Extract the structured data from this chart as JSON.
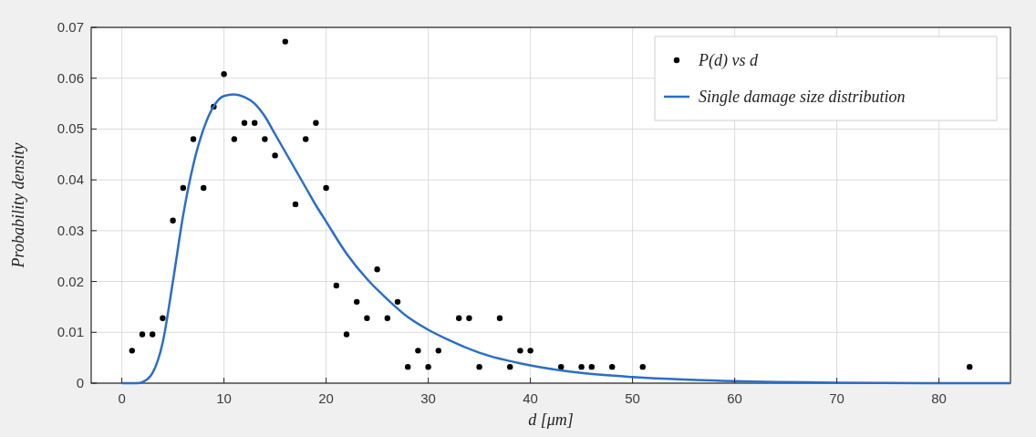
{
  "chart_data": {
    "type": "scatter",
    "xlabel": "d [μm]",
    "ylabel": "Probability density",
    "xlim": [
      -3,
      87
    ],
    "ylim": [
      0,
      0.07
    ],
    "xticks": [
      0,
      10,
      20,
      30,
      40,
      50,
      60,
      70,
      80
    ],
    "yticks": [
      0,
      0.01,
      0.02,
      0.03,
      0.04,
      0.05,
      0.06,
      0.07
    ],
    "grid": true,
    "legend": "top right",
    "series": [
      {
        "name": "P(d) vs d",
        "marker": "circle",
        "color": "#000000",
        "x": [
          1,
          2,
          3,
          4,
          5,
          6,
          7,
          8,
          9,
          10,
          11,
          12,
          13,
          14,
          15,
          16,
          17,
          18,
          19,
          20,
          21,
          22,
          23,
          24,
          25,
          26,
          27,
          28,
          29,
          30,
          31,
          33,
          34,
          35,
          37,
          38,
          39,
          40,
          43,
          45,
          46,
          48,
          51,
          83
        ],
        "values": [
          0.0064,
          0.0096,
          0.0096,
          0.0128,
          0.032,
          0.0384,
          0.048,
          0.0384,
          0.0544,
          0.0608,
          0.048,
          0.0512,
          0.0512,
          0.048,
          0.0448,
          0.0672,
          0.0352,
          0.048,
          0.0512,
          0.0384,
          0.0192,
          0.0096,
          0.016,
          0.0128,
          0.0224,
          0.0128,
          0.016,
          0.0032,
          0.0064,
          0.0032,
          0.0064,
          0.0128,
          0.0128,
          0.0032,
          0.0128,
          0.0032,
          0.0064,
          0.0064,
          0.0032,
          0.0032,
          0.0032,
          0.0032,
          0.0032,
          0.0032
        ]
      },
      {
        "name": "Single damage size distribution",
        "type": "line",
        "color": "#2a6ec6",
        "line_style": "solid",
        "x": [
          0,
          1,
          1.5,
          2,
          3,
          4,
          5,
          6,
          7,
          8,
          9,
          10,
          11,
          12,
          13,
          14,
          15,
          16,
          17,
          18,
          19,
          20,
          22,
          24,
          26,
          28,
          30,
          32,
          35,
          40,
          45,
          50,
          55,
          60,
          70,
          80,
          87
        ],
        "values": [
          0,
          0,
          0,
          0.0002,
          0.002,
          0.008,
          0.02,
          0.033,
          0.043,
          0.05,
          0.0545,
          0.0565,
          0.0568,
          0.0563,
          0.055,
          0.0525,
          0.049,
          0.0455,
          0.042,
          0.0385,
          0.035,
          0.0318,
          0.0255,
          0.0205,
          0.0165,
          0.013,
          0.0105,
          0.0085,
          0.006,
          0.0035,
          0.002,
          0.0012,
          0.0007,
          0.0004,
          0.0001,
          0,
          0
        ]
      }
    ]
  }
}
